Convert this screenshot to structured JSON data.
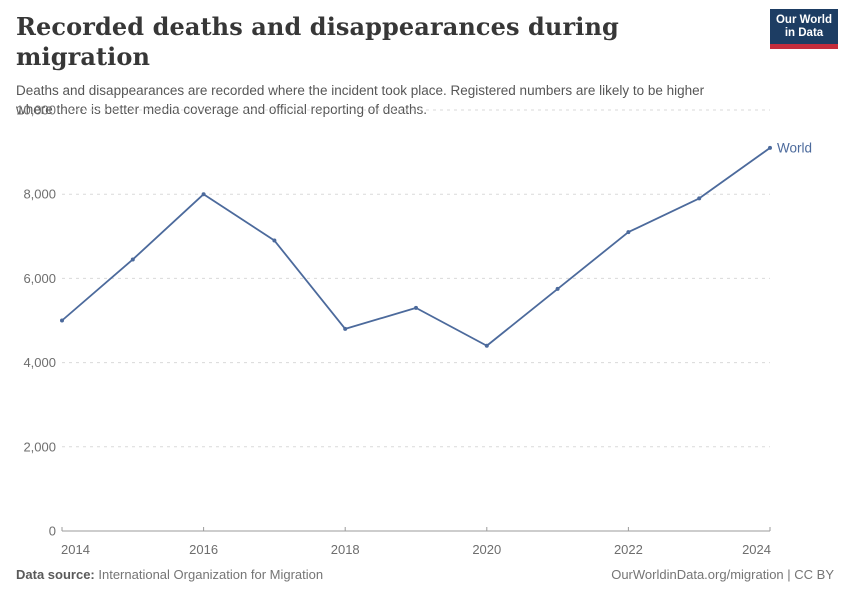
{
  "header": {
    "title": "Recorded deaths and disappearances during migration",
    "subtitle": "Deaths and disappearances are recorded where the incident took place. Registered numbers are likely to be higher where there is better media coverage and official reporting of deaths.",
    "logo": {
      "line1": "Our World",
      "line2": "in Data",
      "bg_color": "#1d3d63",
      "accent_color": "#c42d3c"
    }
  },
  "chart_data": {
    "type": "line",
    "title": "Recorded deaths and disappearances during migration",
    "xlabel": "",
    "ylabel": "",
    "xlim": [
      2014,
      2024
    ],
    "ylim": [
      0,
      10000
    ],
    "grid": "horizontal-dashed",
    "legend": "series-end-label",
    "x_ticks": [
      {
        "value": 2014,
        "label": "2014"
      },
      {
        "value": 2016,
        "label": "2016"
      },
      {
        "value": 2018,
        "label": "2018"
      },
      {
        "value": 2020,
        "label": "2020"
      },
      {
        "value": 2022,
        "label": "2022"
      },
      {
        "value": 2024,
        "label": "2024"
      }
    ],
    "y_ticks": [
      {
        "value": 0,
        "label": "0"
      },
      {
        "value": 2000,
        "label": "2,000"
      },
      {
        "value": 4000,
        "label": "4,000"
      },
      {
        "value": 6000,
        "label": "6,000"
      },
      {
        "value": 8000,
        "label": "8,000"
      },
      {
        "value": 10000,
        "label": "10,000"
      }
    ],
    "series": [
      {
        "name": "World",
        "color": "#4c6a9c",
        "x": [
          2014,
          2015,
          2016,
          2017,
          2018,
          2019,
          2020,
          2021,
          2022,
          2023,
          2024
        ],
        "values": [
          5000,
          6450,
          8000,
          6900,
          4800,
          5300,
          4400,
          5750,
          7100,
          7900,
          9100
        ]
      }
    ]
  },
  "footer": {
    "source_label": "Data source:",
    "source": "International Organization for Migration",
    "right": "OurWorldinData.org/migration | CC BY"
  }
}
